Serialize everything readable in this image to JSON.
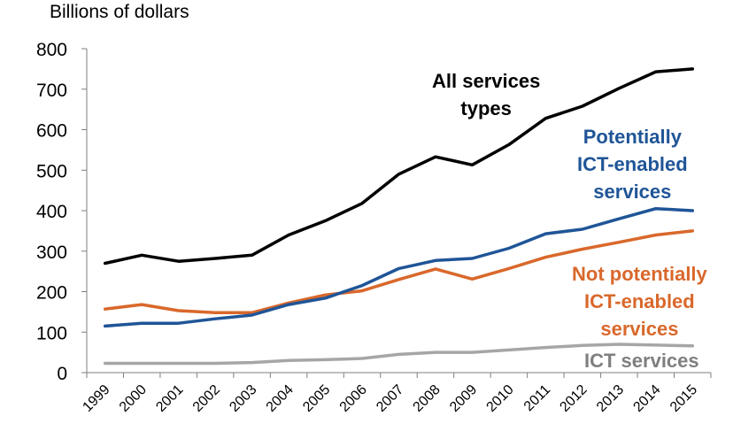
{
  "chart_data": {
    "type": "line",
    "ylabel": "Billions of dollars",
    "ylim": [
      0,
      800
    ],
    "yticks": [
      "0",
      "100",
      "200",
      "300",
      "400",
      "500",
      "600",
      "700",
      "800"
    ],
    "categories": [
      "1999",
      "2000",
      "2001",
      "2002",
      "2003",
      "2004",
      "2005",
      "2006",
      "2007",
      "2008",
      "2009",
      "2010",
      "2011",
      "2012",
      "2013",
      "2014",
      "2015"
    ],
    "grid": false,
    "series": [
      {
        "key": "all",
        "name_lines": [
          "All services",
          "types"
        ],
        "color": "#000000",
        "values": [
          270,
          290,
          275,
          282,
          290,
          340,
          375,
          418,
          490,
          533,
          513,
          563,
          628,
          658,
          702,
          743,
          750
        ]
      },
      {
        "key": "potential",
        "name_lines": [
          "Potentially",
          "ICT-enabled",
          "services"
        ],
        "color": "#1f5597",
        "values": [
          115,
          122,
          122,
          133,
          142,
          168,
          184,
          215,
          257,
          277,
          282,
          307,
          343,
          354,
          380,
          405,
          400
        ]
      },
      {
        "key": "notpotential",
        "name_lines": [
          "Not potentially",
          "ICT-enabled",
          "services"
        ],
        "color": "#d9682b",
        "values": [
          157,
          168,
          153,
          148,
          148,
          172,
          192,
          202,
          230,
          256,
          231,
          257,
          285,
          305,
          322,
          340,
          350
        ]
      },
      {
        "key": "ict",
        "name_lines": [
          "ICT services"
        ],
        "color": "#a6a6a6",
        "values": [
          23,
          23,
          23,
          23,
          25,
          30,
          32,
          35,
          45,
          50,
          50,
          56,
          62,
          67,
          70,
          68,
          66
        ]
      }
    ]
  }
}
